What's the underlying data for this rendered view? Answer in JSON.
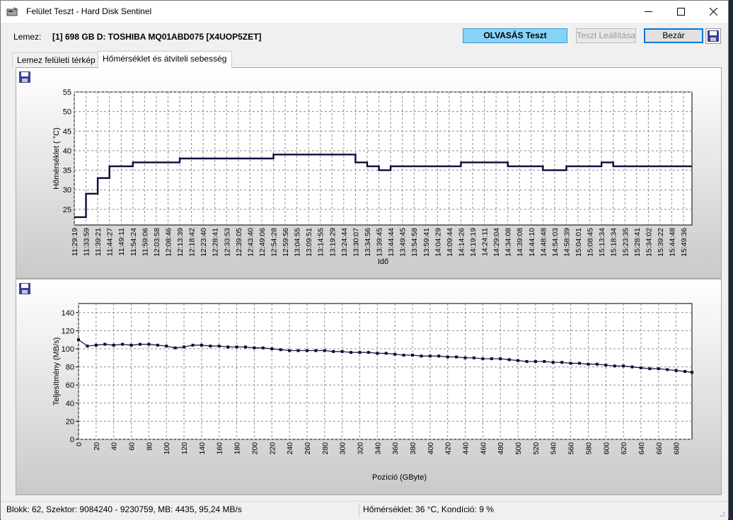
{
  "window": {
    "title": "Felület Teszt - Hard Disk Sentinel"
  },
  "toolbar": {
    "disk_label": "Lemez:",
    "disk_name": "[1] 698 GB D: TOSHIBA MQ01ABD075 [X4UOP5ZET]",
    "read_test_label": "OLVASÁS Teszt",
    "stop_test_label": "Teszt Leállítása",
    "close_label": "Bezár"
  },
  "tabs": [
    {
      "label": "Lemez felületi térkép"
    },
    {
      "label": "Hőmérséklet és átviteli sebesség"
    }
  ],
  "colors": {
    "accent": "#87d3f8",
    "line": "#0a0a3c",
    "grid": "#8c8c8c"
  },
  "icons": {
    "save": "floppy-disk-icon",
    "app": "hard-disk-icon"
  },
  "statusbar": {
    "left": "Blokk: 62, Szektor: 9084240 - 9230759, MB: 4435, 95,24 MB/s",
    "right": "Hőmérséklet: 36  °C,  Kondíció: 9 %"
  },
  "chart_data": [
    {
      "type": "line",
      "title": "",
      "xlabel": "Idő",
      "ylabel": "Hőmérséklet ( °C)",
      "ylim": [
        21,
        55
      ],
      "yticks": [
        25,
        30,
        35,
        40,
        45,
        50,
        55
      ],
      "grid": true,
      "step": true,
      "x": [
        "11:29:19",
        "11:33:59",
        "11:39:21",
        "11:44:27",
        "11:49:11",
        "11:54:24",
        "11:59:06",
        "12:03:58",
        "12:08:46",
        "12:13:39",
        "12:18:42",
        "12:23:40",
        "12:28:41",
        "12:33:53",
        "12:39:05",
        "12:43:40",
        "12:49:06",
        "12:54:28",
        "12:59:56",
        "13:04:55",
        "13:09:51",
        "13:14:55",
        "13:19:29",
        "13:24:44",
        "13:30:07",
        "13:34:56",
        "13:39:45",
        "13:44:44",
        "13:49:45",
        "13:54:58",
        "13:59:41",
        "14:04:29",
        "14:09:44",
        "14:14:26",
        "14:19:19",
        "14:24:11",
        "14:29:04",
        "14:34:08",
        "14:39:08",
        "14:44:10",
        "14:48:48",
        "14:54:03",
        "14:58:39",
        "15:04:01",
        "15:08:45",
        "15:13:34",
        "15:18:34",
        "15:23:35",
        "15:28:41",
        "15:34:02",
        "15:39:22",
        "15:44:48",
        "15:49:36"
      ],
      "values": [
        23,
        29,
        33,
        36,
        36,
        37,
        37,
        37,
        37,
        38,
        38,
        38,
        38,
        38,
        38,
        38,
        38,
        39,
        39,
        39,
        39,
        39,
        39,
        39,
        37,
        36,
        35,
        36,
        36,
        36,
        36,
        36,
        36,
        37,
        37,
        37,
        37,
        36,
        36,
        36,
        35,
        35,
        36,
        36,
        36,
        37,
        36,
        36,
        36,
        36,
        36,
        36,
        36
      ]
    },
    {
      "type": "line",
      "title": "",
      "xlabel": "Pozíció (GByte)",
      "ylabel": "Teljesítmény (MB/s)",
      "xlim": [
        0,
        698
      ],
      "ylim": [
        0,
        150
      ],
      "xticks": [
        0,
        20,
        40,
        60,
        80,
        100,
        120,
        140,
        160,
        180,
        200,
        220,
        240,
        260,
        280,
        300,
        320,
        340,
        360,
        380,
        400,
        420,
        440,
        460,
        480,
        500,
        520,
        540,
        560,
        580,
        600,
        620,
        640,
        660,
        680
      ],
      "yticks": [
        0,
        20,
        40,
        60,
        80,
        100,
        120,
        140
      ],
      "grid": true,
      "markers": true,
      "x": [
        0,
        10,
        20,
        30,
        40,
        50,
        60,
        70,
        80,
        90,
        100,
        110,
        120,
        130,
        140,
        150,
        160,
        170,
        180,
        190,
        200,
        210,
        220,
        230,
        240,
        250,
        260,
        270,
        280,
        290,
        300,
        310,
        320,
        330,
        340,
        350,
        360,
        370,
        380,
        390,
        400,
        410,
        420,
        430,
        440,
        450,
        460,
        470,
        480,
        490,
        500,
        510,
        520,
        530,
        540,
        550,
        560,
        570,
        580,
        590,
        600,
        610,
        620,
        630,
        640,
        650,
        660,
        670,
        680,
        690,
        698
      ],
      "values": [
        110,
        103,
        104,
        105,
        104,
        105,
        104,
        105,
        105,
        104,
        103,
        101,
        102,
        104,
        104,
        103,
        103,
        102,
        102,
        102,
        101,
        101,
        100,
        99,
        98,
        98,
        98,
        98,
        98,
        97,
        97,
        96,
        96,
        96,
        95,
        95,
        94,
        93,
        93,
        92,
        92,
        92,
        91,
        91,
        90,
        90,
        89,
        89,
        89,
        88,
        87,
        86,
        86,
        86,
        85,
        85,
        84,
        84,
        83,
        83,
        82,
        81,
        81,
        80,
        79,
        78,
        78,
        77,
        76,
        75,
        74
      ]
    }
  ]
}
